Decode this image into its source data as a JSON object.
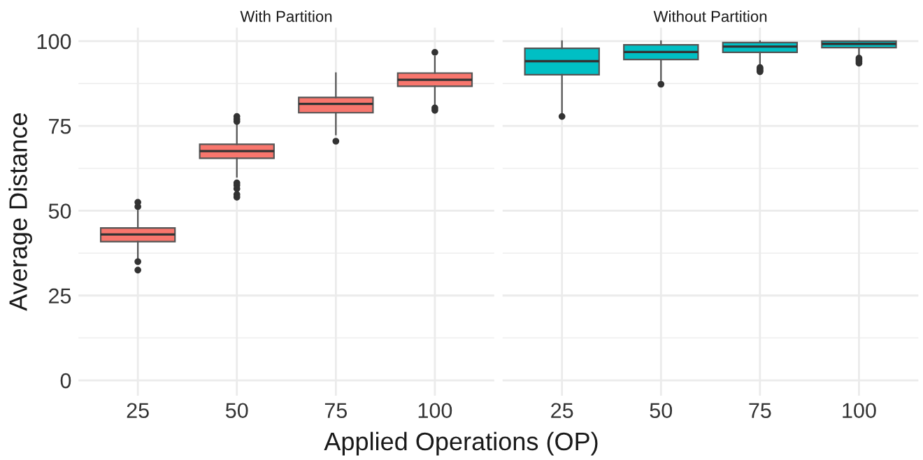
{
  "chart_data": [
    {
      "type": "box",
      "title": "With Partition",
      "xlabel": "Applied Operations (OP)",
      "ylabel": "Average Distance",
      "categories": [
        "25",
        "50",
        "75",
        "100"
      ],
      "color": "#f8766d",
      "ylim": [
        -4.5,
        104
      ],
      "yticks": [
        0,
        {
          "value": 12.5,
          "label": null
        },
        25,
        {
          "value": 37.5,
          "label": null
        },
        50,
        {
          "value": 62.5,
          "label": null
        },
        75,
        {
          "value": 87.5,
          "label": null
        },
        100
      ],
      "grid": true,
      "boxes": [
        {
          "low": 36,
          "q1": 40.9,
          "median": 43,
          "q3": 44.9,
          "high": 50,
          "outliers": [
            52.5,
            51.2,
            35,
            32.5
          ]
        },
        {
          "low": 60,
          "q1": 65.5,
          "median": 67.6,
          "q3": 69.6,
          "high": 75.5,
          "outliers": [
            77.8,
            77,
            76.3,
            58.2,
            57.5,
            56.5,
            54.8,
            54
          ]
        },
        {
          "low": 72.5,
          "q1": 78.9,
          "median": 81.5,
          "q3": 83.4,
          "high": 90.6,
          "outliers": [
            70.5
          ]
        },
        {
          "low": 81,
          "q1": 86.7,
          "median": 88.6,
          "q3": 90.6,
          "high": 95.4,
          "outliers": [
            96.7,
            80.3,
            79.6
          ]
        }
      ]
    },
    {
      "type": "box",
      "title": "Without Partition",
      "categories": [
        "25",
        "50",
        "75",
        "100"
      ],
      "color": "#00bfc4",
      "ylim": [
        -4.5,
        104
      ],
      "yticks": [
        0,
        {
          "value": 12.5,
          "label": null
        },
        25,
        {
          "value": 37.5,
          "label": null
        },
        50,
        {
          "value": 62.5,
          "label": null
        },
        75,
        {
          "value": 87.5,
          "label": null
        },
        100
      ],
      "grid": true,
      "tick_labels": "x",
      "boxes": [
        {
          "low": 79,
          "q1": 90.1,
          "median": 94.1,
          "q3": 97.9,
          "high": 100,
          "outliers": [
            77.8
          ]
        },
        {
          "low": 88.5,
          "q1": 94.6,
          "median": 96.8,
          "q3": 98.9,
          "high": 100,
          "outliers": [
            87.3
          ]
        },
        {
          "low": 92.8,
          "q1": 96.7,
          "median": 98.4,
          "q3": 99.6,
          "high": 100,
          "outliers": [
            92.2,
            91.8,
            91.3,
            91
          ]
        },
        {
          "low": 95.5,
          "q1": 98.1,
          "median": 99.2,
          "q3": 100,
          "high": 100,
          "outliers": [
            95,
            94.5,
            94,
            93.5
          ]
        }
      ]
    }
  ]
}
